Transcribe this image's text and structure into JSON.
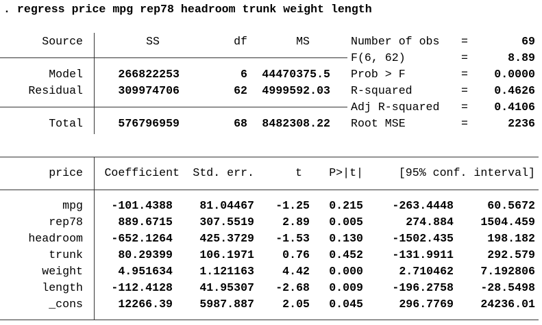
{
  "command": ". regress price mpg rep78 headroom trunk weight length",
  "anova": {
    "headers": [
      "Source",
      "SS",
      "df",
      "MS"
    ],
    "rows": [
      [
        "Model",
        "266822253",
        "6",
        "44470375.5"
      ],
      [
        "Residual",
        "309974706",
        "62",
        "4999592.03"
      ],
      [
        "Total",
        "576796959",
        "68",
        "8482308.22"
      ]
    ]
  },
  "stats": {
    "equals": "=",
    "rows": [
      [
        "Number of obs",
        "69"
      ],
      [
        "F(6, 62)",
        "8.89"
      ],
      [
        "Prob > F",
        "0.0000"
      ],
      [
        "R-squared",
        "0.4626"
      ],
      [
        "Adj R-squared",
        "0.4106"
      ],
      [
        "Root MSE",
        "2236"
      ]
    ]
  },
  "coef": {
    "headers": [
      "price",
      "Coefficient",
      "Std. err.",
      "t",
      "P>|t|",
      "[95% conf. interval]"
    ],
    "rows": [
      [
        "mpg",
        "-101.4388",
        "81.04467",
        "-1.25",
        "0.215",
        "-263.4448",
        "60.5672"
      ],
      [
        "rep78",
        "889.6715",
        "307.5519",
        "2.89",
        "0.005",
        "274.884",
        "1504.459"
      ],
      [
        "headroom",
        "-652.1264",
        "425.3729",
        "-1.53",
        "0.130",
        "-1502.435",
        "198.182"
      ],
      [
        "trunk",
        "80.29399",
        "106.1971",
        "0.76",
        "0.452",
        "-131.9911",
        "292.579"
      ],
      [
        "weight",
        "4.951634",
        "1.121163",
        "4.42",
        "0.000",
        "2.710462",
        "7.192806"
      ],
      [
        "length",
        "-112.4128",
        "41.95307",
        "-2.68",
        "0.009",
        "-196.2758",
        "-28.5498"
      ],
      [
        "_cons",
        "12266.39",
        "5987.887",
        "2.05",
        "0.045",
        "296.7769",
        "24236.01"
      ]
    ]
  }
}
